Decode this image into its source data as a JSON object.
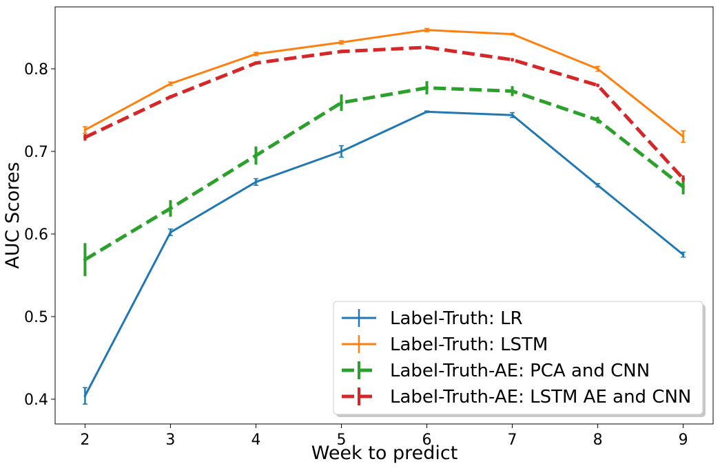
{
  "chart_data": {
    "type": "line",
    "title": "",
    "xlabel": "Week to predict",
    "ylabel": "AUC Scores",
    "x": [
      2,
      3,
      4,
      5,
      6,
      7,
      8,
      9
    ],
    "xlim": [
      1.65,
      9.35
    ],
    "ylim": [
      0.37,
      0.875
    ],
    "xticks": [
      "2",
      "3",
      "4",
      "5",
      "6",
      "7",
      "8",
      "9"
    ],
    "yticks": [
      "0.4",
      "0.5",
      "0.6",
      "0.7",
      "0.8"
    ],
    "ytick_values": [
      0.4,
      0.5,
      0.6,
      0.7,
      0.8
    ],
    "grid": false,
    "legend_position": "lower-right",
    "series": [
      {
        "name": "Label-Truth: LR",
        "color": "#1f77b4",
        "style": "solid",
        "values": [
          0.404,
          0.602,
          0.663,
          0.7,
          0.748,
          0.744,
          0.659,
          0.575
        ],
        "errors": [
          0.01,
          0.004,
          0.004,
          0.007,
          0.001,
          0.003,
          0.002,
          0.003
        ]
      },
      {
        "name": "Label-Truth: LSTM",
        "color": "#ff7f0e",
        "style": "solid",
        "values": [
          0.726,
          0.782,
          0.818,
          0.832,
          0.847,
          0.842,
          0.8,
          0.718
        ],
        "errors": [
          0.004,
          0.002,
          0.002,
          0.002,
          0.002,
          0.001,
          0.003,
          0.007
        ]
      },
      {
        "name": "Label-Truth-AE: PCA and CNN",
        "color": "#2ca02c",
        "style": "dashed",
        "values": [
          0.569,
          0.631,
          0.695,
          0.759,
          0.777,
          0.773,
          0.738,
          0.657
        ],
        "errors": [
          0.02,
          0.01,
          0.011,
          0.01,
          0.008,
          0.006,
          0.004,
          0.009
        ]
      },
      {
        "name": "Label-Truth-AE: LSTM AE and CNN",
        "color": "#d62728",
        "style": "dashed",
        "values": [
          0.717,
          0.766,
          0.807,
          0.821,
          0.826,
          0.811,
          0.78,
          0.667
        ],
        "errors": [
          0.004,
          0.002,
          0.002,
          0.002,
          0.002,
          0.002,
          0.002,
          0.004
        ]
      }
    ]
  }
}
